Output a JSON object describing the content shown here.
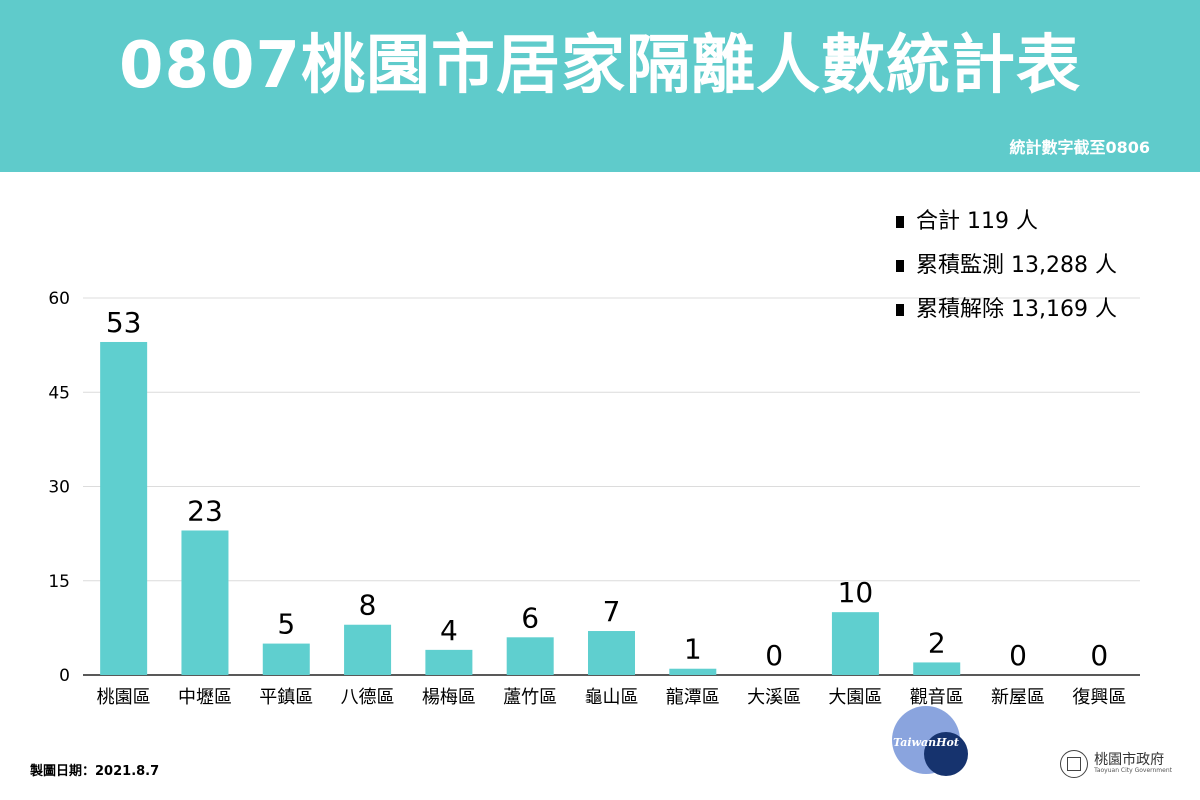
{
  "header": {
    "title": "0807桃園市居家隔離人數統計表",
    "subtitle": "統計數字截至0806",
    "bg_color": "#5fcbcb"
  },
  "stats": [
    {
      "label": "合計 119 人"
    },
    {
      "label": "累積監測 13,288 人"
    },
    {
      "label": "累積解除 13,169 人"
    }
  ],
  "footer": {
    "date_label": "製圖日期：",
    "date_value": "2021.8.7",
    "watermark_text": "TaiwanHot",
    "logo_zh": "桃園市政府",
    "logo_en": "Taoyuan City Government"
  },
  "chart_data": {
    "type": "bar",
    "categories": [
      "桃園區",
      "中壢區",
      "平鎮區",
      "八德區",
      "楊梅區",
      "蘆竹區",
      "龜山區",
      "龍潭區",
      "大溪區",
      "大園區",
      "觀音區",
      "新屋區",
      "復興區"
    ],
    "values": [
      53,
      23,
      5,
      8,
      4,
      6,
      7,
      1,
      0,
      10,
      2,
      0,
      0
    ],
    "ylim": [
      0,
      60
    ],
    "yticks": [
      0,
      15,
      30,
      45,
      60
    ],
    "grid": true,
    "bar_color": "#5fcfcf",
    "xlabel": "",
    "ylabel": ""
  }
}
